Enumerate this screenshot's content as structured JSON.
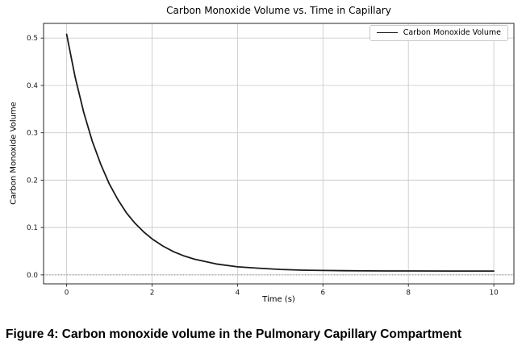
{
  "figure": {
    "caption": "Figure 4: Carbon monoxide volume in the Pulmonary Capillary Compartment"
  },
  "chart_data": {
    "type": "line",
    "title": "Carbon Monoxide Volume vs. Time in Capillary",
    "xlabel": "Time (s)",
    "ylabel": "Carbon Monoxide Volume",
    "legend": {
      "position": "upper right",
      "entries": [
        {
          "label": "Carbon Monoxide Volume",
          "color": "#1a1a1a"
        }
      ]
    },
    "xlim": [
      -0.54,
      10.47
    ],
    "ylim": [
      -0.019,
      0.531
    ],
    "xticks": {
      "values": [
        0,
        2,
        4,
        6,
        8,
        10
      ],
      "labels": [
        "0",
        "2",
        "4",
        "6",
        "8",
        "10"
      ]
    },
    "yticks": {
      "values": [
        0.0,
        0.1,
        0.2,
        0.3,
        0.4,
        0.5
      ],
      "labels": [
        "0.0",
        "0.1",
        "0.2",
        "0.3",
        "0.4",
        "0.5"
      ]
    },
    "grid": true,
    "reference_line": {
      "y": 0,
      "style": "dotted",
      "color": "#8a8a8a"
    },
    "series": [
      {
        "name": "Carbon Monoxide Volume",
        "color": "#1a1a1a",
        "x": [
          0,
          0.2,
          0.4,
          0.6,
          0.8,
          1.0,
          1.2,
          1.4,
          1.6,
          1.8,
          2.0,
          2.25,
          2.5,
          2.75,
          3.0,
          3.5,
          4.0,
          4.5,
          5.0,
          5.5,
          6.0,
          6.5,
          7.0,
          7.5,
          8.0,
          9.0,
          10.0
        ],
        "y": [
          0.508,
          0.417,
          0.343,
          0.282,
          0.233,
          0.192,
          0.159,
          0.131,
          0.109,
          0.091,
          0.076,
          0.061,
          0.049,
          0.04,
          0.033,
          0.023,
          0.017,
          0.014,
          0.0114,
          0.01,
          0.0092,
          0.0088,
          0.0085,
          0.0083,
          0.0082,
          0.0081,
          0.008
        ]
      }
    ],
    "colors": {
      "grid": "#cccccc",
      "spine": "#262626",
      "curve": "#1a1a1a",
      "background": "#ffffff"
    }
  }
}
